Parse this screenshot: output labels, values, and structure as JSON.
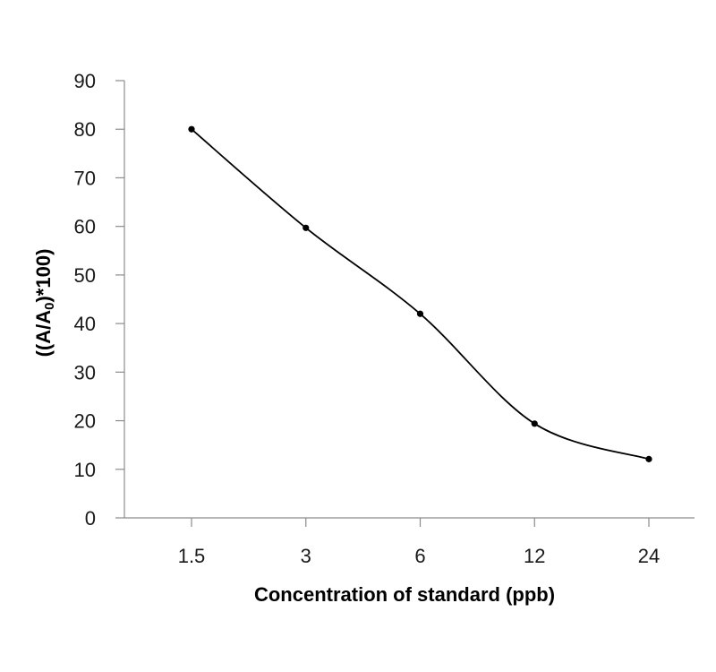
{
  "chart_data": {
    "type": "line",
    "title": "",
    "xlabel": "Concentration of standard (ppb)",
    "ylabel": "((A/A0)*100)",
    "ylabel_parts": {
      "before": "((A/A",
      "subscript": "0",
      "after": ")*100)"
    },
    "categories": [
      "1.5",
      "3",
      "6",
      "12",
      "24"
    ],
    "values": [
      80,
      59.7,
      42,
      19.4,
      12.1
    ],
    "ylim": [
      0,
      90
    ],
    "yticks": [
      0,
      10,
      20,
      30,
      40,
      50,
      60,
      70,
      80,
      90
    ],
    "grid": false,
    "legend": "none",
    "smooth": true,
    "colors": {
      "line": "#000000",
      "marker": "#000000",
      "axis": "#8c8c8c"
    }
  }
}
